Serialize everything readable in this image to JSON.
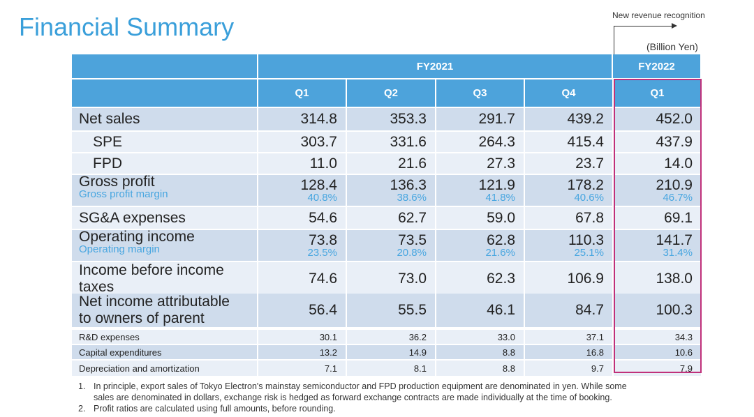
{
  "title": "Financial Summary",
  "annotation": "New revenue recognition",
  "unit": "(Billion Yen)",
  "fiscal_years": [
    "FY2021",
    "FY2022"
  ],
  "quarters": [
    "Q1",
    "Q2",
    "Q3",
    "Q4",
    "Q1"
  ],
  "rows": [
    {
      "label": "Net sales",
      "values": [
        "314.8",
        "353.3",
        "291.7",
        "439.2",
        "452.0"
      ]
    },
    {
      "label": "SPE",
      "values": [
        "303.7",
        "331.6",
        "264.3",
        "415.4",
        "437.9"
      ]
    },
    {
      "label": "FPD",
      "values": [
        "11.0",
        "21.6",
        "27.3",
        "23.7",
        "14.0"
      ]
    },
    {
      "label": "Gross profit",
      "values": [
        "128.4",
        "136.3",
        "121.9",
        "178.2",
        "210.9"
      ],
      "sub_label": "Gross profit margin",
      "sub_values": [
        "40.8%",
        "38.6%",
        "41.8%",
        "40.6%",
        "46.7%"
      ]
    },
    {
      "label": "SG&A expenses",
      "values": [
        "54.6",
        "62.7",
        "59.0",
        "67.8",
        "69.1"
      ]
    },
    {
      "label": "Operating income",
      "values": [
        "73.8",
        "73.5",
        "62.8",
        "110.3",
        "141.7"
      ],
      "sub_label": "Operating margin",
      "sub_values": [
        "23.5%",
        "20.8%",
        "21.6%",
        "25.1%",
        "31.4%"
      ]
    },
    {
      "label": "Income before income taxes",
      "values": [
        "74.6",
        "73.0",
        "62.3",
        "106.9",
        "138.0"
      ]
    },
    {
      "label": "Net income attributable to owners of parent",
      "values": [
        "56.4",
        "55.5",
        "46.1",
        "84.7",
        "100.3"
      ]
    },
    {
      "label": "R&D expenses",
      "values": [
        "30.1",
        "36.2",
        "33.0",
        "37.1",
        "34.3"
      ]
    },
    {
      "label": "Capital expenditures",
      "values": [
        "13.2",
        "14.9",
        "8.8",
        "16.8",
        "10.6"
      ]
    },
    {
      "label": "Depreciation and amortization",
      "values": [
        "7.1",
        "8.1",
        "8.8",
        "9.7",
        "7.9"
      ]
    }
  ],
  "footnotes": [
    {
      "num": "1.",
      "text": "In principle, export sales of Tokyo Electron's mainstay semiconductor and FPD production equipment are denominated in yen. While some sales are denominated in dollars, exchange risk is hedged as forward exchange contracts are made individually at the time of booking."
    },
    {
      "num": "2.",
      "text": "Profit ratios are calculated using full amounts, before rounding."
    }
  ],
  "colors": {
    "header": "#4da3db",
    "highlight": "#c0307a",
    "title": "#3a9fda",
    "margin_text": "#48a6e0"
  }
}
